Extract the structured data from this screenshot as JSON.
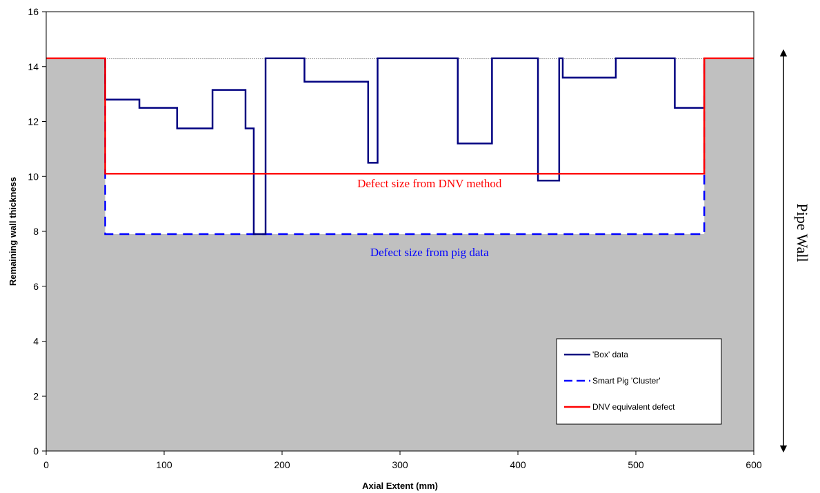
{
  "chart_data": {
    "type": "line",
    "xlabel": "Axial Extent (mm)",
    "ylabel": "Remaining wall thickness",
    "xlim": [
      0,
      600
    ],
    "ylim": [
      0,
      16
    ],
    "xticks": [
      0,
      100,
      200,
      300,
      400,
      500,
      600
    ],
    "yticks": [
      0,
      2,
      4,
      6,
      8,
      10,
      12,
      14,
      16
    ],
    "nominal_wall": 14.3,
    "series": [
      {
        "name": "'Box' data",
        "color": "#000080",
        "style": "step",
        "points": [
          [
            50,
            14.3
          ],
          [
            50,
            12.8
          ],
          [
            79,
            12.8
          ],
          [
            79,
            12.5
          ],
          [
            111,
            12.5
          ],
          [
            111,
            11.75
          ],
          [
            141,
            11.75
          ],
          [
            141,
            13.15
          ],
          [
            169,
            13.15
          ],
          [
            169,
            11.75
          ],
          [
            176,
            11.75
          ],
          [
            176,
            7.9
          ],
          [
            186,
            7.9
          ],
          [
            186,
            14.3
          ],
          [
            219,
            14.3
          ],
          [
            219,
            13.45
          ],
          [
            273,
            13.45
          ],
          [
            273,
            10.5
          ],
          [
            281,
            10.5
          ],
          [
            281,
            14.3
          ],
          [
            349,
            14.3
          ],
          [
            349,
            11.2
          ],
          [
            378,
            11.2
          ],
          [
            378,
            14.3
          ],
          [
            417,
            14.3
          ],
          [
            417,
            9.85
          ],
          [
            435,
            9.85
          ],
          [
            435,
            14.3
          ],
          [
            438,
            14.3
          ],
          [
            438,
            13.6
          ],
          [
            483,
            13.6
          ],
          [
            483,
            14.3
          ],
          [
            533,
            14.3
          ],
          [
            533,
            12.5
          ],
          [
            558,
            12.5
          ],
          [
            558,
            14.3
          ]
        ]
      },
      {
        "name": "Smart Pig 'Cluster'",
        "color": "#0000ff",
        "style": "dashed",
        "points": [
          [
            50,
            14.3
          ],
          [
            50,
            7.9
          ],
          [
            558,
            7.9
          ],
          [
            558,
            14.3
          ]
        ]
      },
      {
        "name": "DNV equivalent defect",
        "color": "#ff0000",
        "style": "solid",
        "points": [
          [
            0,
            14.3
          ],
          [
            50,
            14.3
          ],
          [
            50,
            10.1
          ],
          [
            558,
            10.1
          ],
          [
            558,
            14.3
          ],
          [
            600,
            14.3
          ]
        ]
      }
    ],
    "annotations": [
      {
        "text": "Defect size from DNV method",
        "x": 325,
        "y": 9.6,
        "color": "#ff0000"
      },
      {
        "text": "Defect size from pig data",
        "x": 325,
        "y": 7.1,
        "color": "#0000ff"
      }
    ],
    "side_label": "Pipe Wall",
    "fill_color": "#c0c0c0",
    "legend_position": "bottom-right"
  }
}
